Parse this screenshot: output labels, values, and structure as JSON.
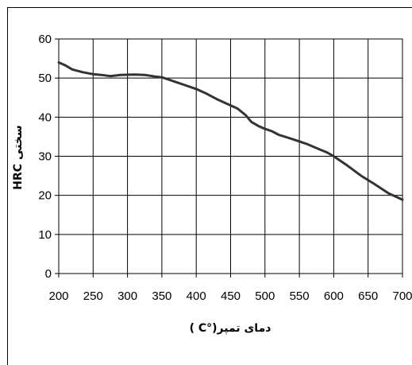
{
  "chart_data": {
    "type": "line",
    "title": "",
    "xlabel": "دمای تمپر(°C )",
    "ylabel": "HRC سختی",
    "xlim": [
      200,
      700
    ],
    "ylim": [
      0,
      60
    ],
    "x_ticks": [
      "200",
      "250",
      "300",
      "350",
      "400",
      "450",
      "500",
      "550",
      "600",
      "650",
      "700"
    ],
    "y_ticks": [
      "0",
      "10",
      "20",
      "30",
      "40",
      "50",
      "60"
    ],
    "grid": true,
    "series": [
      {
        "color": "#333333",
        "x": [
          200,
          210,
          220,
          235,
          250,
          262,
          275,
          290,
          310,
          325,
          340,
          350,
          365,
          380,
          400,
          415,
          430,
          445,
          460,
          472,
          480,
          490,
          500,
          510,
          520,
          540,
          560,
          575,
          590,
          600,
          620,
          640,
          660,
          680,
          700
        ],
        "y": [
          54,
          53.2,
          52.2,
          51.5,
          51,
          50.8,
          50.5,
          50.8,
          50.9,
          50.8,
          50.4,
          50.2,
          49.3,
          48.4,
          47.2,
          46,
          44.6,
          43.4,
          42.2,
          40.5,
          38.8,
          37.8,
          37,
          36.4,
          35.5,
          34.4,
          33.2,
          32.1,
          31,
          30,
          27.6,
          25,
          22.8,
          20.5,
          18.9
        ]
      }
    ]
  }
}
